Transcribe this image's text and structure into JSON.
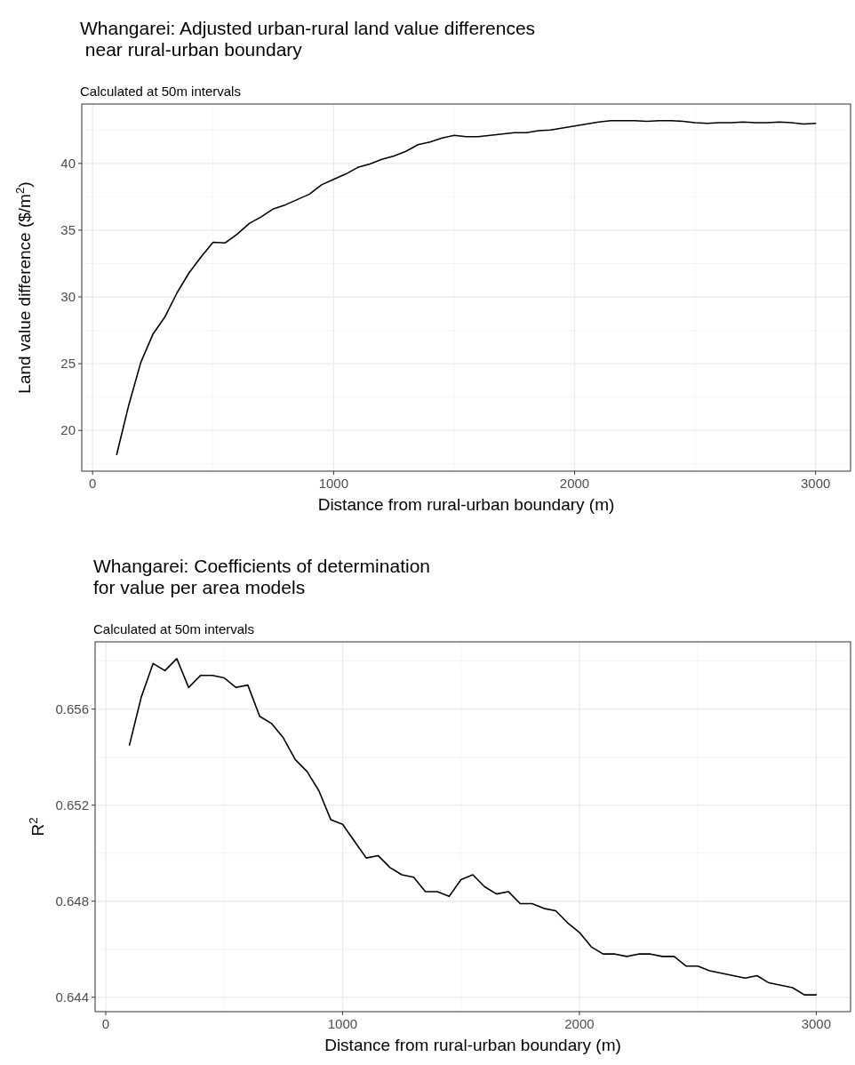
{
  "chart_data": [
    {
      "type": "line",
      "title": "Whangarei: Adjusted urban-rural land value differences\n near rural-urban boundary",
      "subtitle": "Calculated at 50m intervals",
      "xlabel": "Distance from rural-urban boundary (m)",
      "ylabel": "Land value difference ($/m$^{2}$)",
      "x": [
        100,
        150,
        200,
        250,
        300,
        350,
        400,
        450,
        500,
        550,
        600,
        650,
        700,
        750,
        800,
        850,
        900,
        950,
        1000,
        1050,
        1100,
        1150,
        1200,
        1250,
        1300,
        1350,
        1400,
        1450,
        1500,
        1550,
        1600,
        1650,
        1700,
        1750,
        1800,
        1850,
        1900,
        1950,
        2000,
        2050,
        2100,
        2150,
        2200,
        2250,
        2300,
        2350,
        2400,
        2450,
        2500,
        2550,
        2600,
        2650,
        2700,
        2750,
        2800,
        2850,
        2900,
        2950,
        3000
      ],
      "series": [
        {
          "color": "#000000",
          "values": [
            18.2,
            21.9,
            25.1,
            27.2,
            28.5,
            30.3,
            31.8,
            33.0,
            34.1,
            34.05,
            34.7,
            35.5,
            36.0,
            36.6,
            36.9,
            37.3,
            37.7,
            38.4,
            38.8,
            39.2,
            39.7,
            39.95,
            40.3,
            40.55,
            40.9,
            41.4,
            41.6,
            41.9,
            42.1,
            42.0,
            42.0,
            42.1,
            42.2,
            42.3,
            42.3,
            42.45,
            42.5,
            42.65,
            42.8,
            42.95,
            43.1,
            43.2,
            43.2,
            43.2,
            43.15,
            43.2,
            43.2,
            43.15,
            43.05,
            43.0,
            43.05,
            43.05,
            43.1,
            43.05,
            43.05,
            43.1,
            43.05,
            42.95,
            43.0
          ]
        }
      ],
      "xlim": [
        -45,
        3145
      ],
      "xticks": [
        0,
        1000,
        2000,
        3000
      ],
      "ylim": [
        16.95,
        44.45
      ],
      "yticks": [
        20,
        25,
        30,
        35,
        40
      ],
      "grid": true
    },
    {
      "type": "line",
      "title": "Whangarei: Coefficients of determination\nfor value per area models",
      "subtitle": "Calculated at 50m intervals",
      "xlabel": "Distance from rural-urban boundary (m)",
      "ylabel": "R$^{2}$",
      "x": [
        100,
        150,
        200,
        250,
        300,
        350,
        400,
        450,
        500,
        550,
        600,
        650,
        700,
        750,
        800,
        850,
        900,
        950,
        1000,
        1050,
        1100,
        1150,
        1200,
        1250,
        1300,
        1350,
        1400,
        1450,
        1500,
        1550,
        1600,
        1650,
        1700,
        1750,
        1800,
        1850,
        1900,
        1950,
        2000,
        2050,
        2100,
        2150,
        2200,
        2250,
        2300,
        2350,
        2400,
        2450,
        2500,
        2550,
        2600,
        2650,
        2700,
        2750,
        2800,
        2850,
        2900,
        2950,
        3000
      ],
      "series": [
        {
          "color": "#000000",
          "values": [
            0.6545,
            0.6565,
            0.6579,
            0.6576,
            0.6581,
            0.6569,
            0.6574,
            0.6574,
            0.6573,
            0.6569,
            0.657,
            0.6557,
            0.6554,
            0.6548,
            0.6539,
            0.6534,
            0.6526,
            0.6514,
            0.6512,
            0.6505,
            0.6498,
            0.6499,
            0.6494,
            0.6491,
            0.649,
            0.6484,
            0.6484,
            0.6482,
            0.6489,
            0.6491,
            0.6486,
            0.6483,
            0.6484,
            0.6479,
            0.6479,
            0.6477,
            0.6476,
            0.6471,
            0.6467,
            0.6461,
            0.6458,
            0.6458,
            0.6457,
            0.6458,
            0.6458,
            0.6457,
            0.6457,
            0.6453,
            0.6453,
            0.6451,
            0.645,
            0.6449,
            0.6448,
            0.6449,
            0.6446,
            0.6445,
            0.6444,
            0.6441,
            0.6441
          ]
        }
      ],
      "xlim": [
        -45,
        3145
      ],
      "xticks": [
        0,
        1000,
        2000,
        3000
      ],
      "ylim": [
        0.6434,
        0.6588
      ],
      "yticks": [
        0.644,
        0.648,
        0.652,
        0.656
      ],
      "grid": true
    }
  ]
}
